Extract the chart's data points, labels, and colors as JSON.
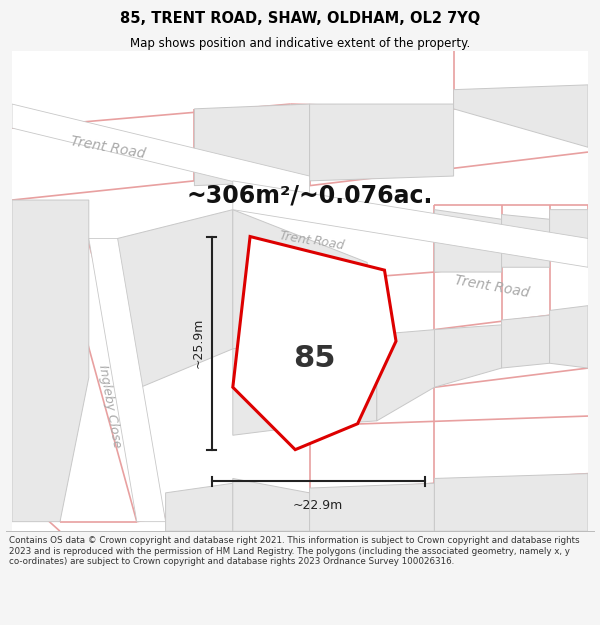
{
  "title": "85, TRENT ROAD, SHAW, OLDHAM, OL2 7YQ",
  "subtitle": "Map shows position and indicative extent of the property.",
  "area_text": "~306m²/~0.076ac.",
  "property_number": "85",
  "dim_horizontal": "~22.9m",
  "dim_vertical": "~25.9m",
  "footer_text": "Contains OS data © Crown copyright and database right 2021. This information is subject to Crown copyright and database rights 2023 and is reproduced with the permission of HM Land Registry. The polygons (including the associated geometry, namely x, y co-ordinates) are subject to Crown copyright and database rights 2023 Ordnance Survey 100026316.",
  "bg_color": "#f5f5f5",
  "map_bg": "#ffffff",
  "road_fill": "#ffffff",
  "road_outline_gray": "#c8c8c8",
  "road_outline_pink": "#e8a0a0",
  "plot_fill": "#ffffff",
  "plot_edge": "#dd0000",
  "building_fill": "#e8e8e8",
  "building_edge": "#c8c8c8",
  "label_color": "#aaaaaa",
  "title_color": "#000000",
  "footer_color": "#333333",
  "dim_color": "#222222"
}
